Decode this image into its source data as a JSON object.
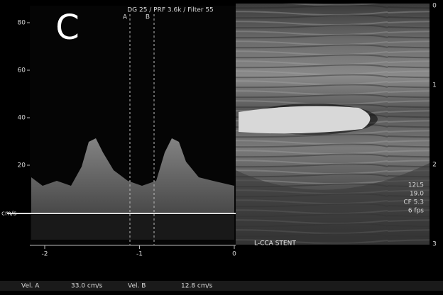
{
  "panel_label": "C",
  "doppler": {
    "settings": "DG 25 /   PRF 3.6k  / Filter 55",
    "cursor_labels": [
      "A",
      "B"
    ],
    "unit": "cm/s",
    "yticks": [
      80,
      60,
      40,
      20
    ],
    "xticks": [
      -2,
      -1,
      0
    ]
  },
  "image": {
    "annotation": "L-CCA STENT",
    "probe": [
      "12L5",
      "19.0",
      "CF 5.3",
      "6 fps"
    ],
    "depth_marks": [
      0,
      1,
      2,
      3
    ]
  },
  "measurements": {
    "vel_a_label": "Vel. A",
    "vel_a": "33.0  cm/s",
    "vel_b_label": "Vel. B",
    "vel_b": "12.8  cm/s"
  }
}
